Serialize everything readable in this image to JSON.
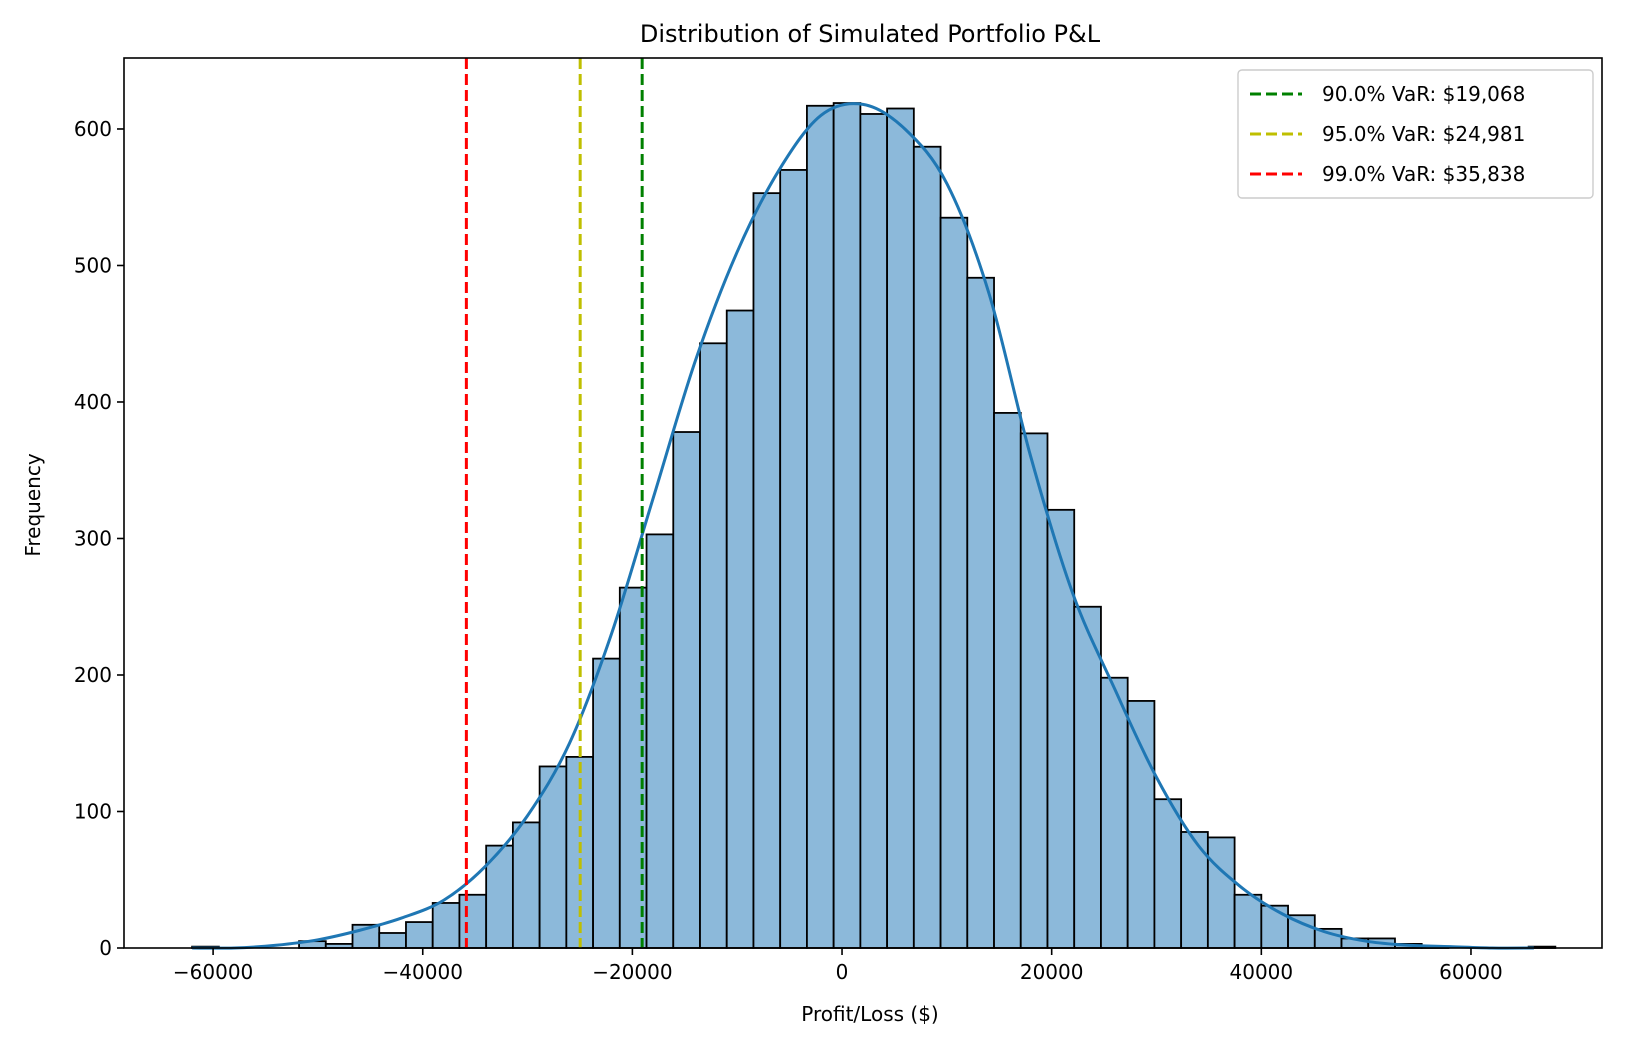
{
  "chart_data": {
    "type": "bar",
    "title": "Distribution of Simulated Portfolio P&L",
    "xlabel": "Profit/Loss ($)",
    "ylabel": "Frequency",
    "xlim": [
      -68500,
      72500
    ],
    "ylim": [
      0,
      652
    ],
    "xticks": [
      -60000,
      -40000,
      -20000,
      0,
      20000,
      40000,
      60000
    ],
    "xtick_labels": [
      "−60000",
      "−40000",
      "−20000",
      "0",
      "20000",
      "40000",
      "60000"
    ],
    "yticks": [
      0,
      100,
      200,
      300,
      400,
      500,
      600
    ],
    "ytick_labels": [
      "0",
      "100",
      "200",
      "300",
      "400",
      "500",
      "600"
    ],
    "grid": false,
    "histogram": {
      "bin_start": -62000,
      "bin_width": 2550,
      "counts": [
        1,
        0,
        0,
        0,
        5,
        3,
        17,
        11,
        19,
        33,
        39,
        75,
        92,
        133,
        140,
        212,
        264,
        303,
        378,
        443,
        467,
        553,
        570,
        617,
        619,
        611,
        615,
        587,
        535,
        491,
        392,
        377,
        321,
        250,
        198,
        181,
        109,
        85,
        81,
        39,
        31,
        24,
        14,
        7,
        7,
        3,
        1,
        0,
        0,
        0,
        1
      ],
      "fill_color": "#8cb9da",
      "edge_color": "#000000"
    },
    "kde": {
      "x": [
        -62000,
        -58000,
        -54000,
        -50000,
        -46000,
        -42000,
        -38000,
        -34000,
        -30000,
        -26000,
        -22000,
        -18000,
        -14000,
        -10000,
        -6000,
        -2000,
        2000,
        6000,
        10000,
        14000,
        18000,
        22000,
        26000,
        30000,
        34000,
        38000,
        42000,
        46000,
        50000,
        54000,
        58000,
        62000,
        66000
      ],
      "y": [
        0,
        0,
        2,
        6,
        13,
        22,
        35,
        60,
        97,
        150,
        230,
        330,
        430,
        510,
        570,
        610,
        618,
        600,
        560,
        480,
        360,
        260,
        190,
        125,
        75,
        45,
        25,
        12,
        5,
        2,
        1,
        0,
        0
      ],
      "color": "#1f77b4"
    },
    "var_lines": [
      {
        "label": "90.0% VaR: $19,068",
        "x": -19068,
        "color": "#008000"
      },
      {
        "label": "95.0% VaR: $24,981",
        "x": -24981,
        "color": "#bfbf00"
      },
      {
        "label": "99.0% VaR: $35,838",
        "x": -35838,
        "color": "#ff0000"
      }
    ],
    "legend_placement": "top-right"
  }
}
